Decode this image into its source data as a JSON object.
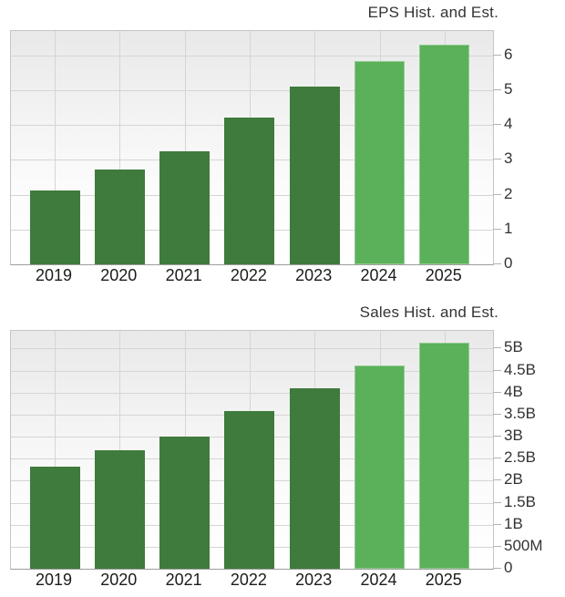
{
  "page_background": "#ffffff",
  "chart_data": [
    {
      "type": "bar",
      "title": "EPS Hist. and Est.",
      "categories": [
        "2019",
        "2020",
        "2021",
        "2022",
        "2023",
        "2024",
        "2025"
      ],
      "values": [
        2.12,
        2.73,
        3.25,
        4.21,
        5.11,
        5.84,
        6.31
      ],
      "is_estimate": [
        false,
        false,
        false,
        false,
        false,
        true,
        true
      ],
      "ylim": [
        0,
        6.7
      ],
      "yticks": [
        {
          "v": 0,
          "label": "0"
        },
        {
          "v": 1,
          "label": "1"
        },
        {
          "v": 2,
          "label": "2"
        },
        {
          "v": 3,
          "label": "3"
        },
        {
          "v": 4,
          "label": "4"
        },
        {
          "v": 5,
          "label": "5"
        },
        {
          "v": 6,
          "label": "6"
        }
      ],
      "grid": true,
      "axis_side": "right",
      "colors": {
        "historical": "#3e7b3c",
        "estimate": "#5bb05a"
      }
    },
    {
      "type": "bar",
      "title": "Sales Hist. and Est.",
      "categories": [
        "2019",
        "2020",
        "2021",
        "2022",
        "2023",
        "2024",
        "2025"
      ],
      "values": [
        2.31,
        2.68,
        2.99,
        3.57,
        4.1,
        4.61,
        5.13
      ],
      "value_unit": "billions",
      "is_estimate": [
        false,
        false,
        false,
        false,
        false,
        true,
        true
      ],
      "ylim": [
        0,
        5.4
      ],
      "yticks": [
        {
          "v": 0,
          "label": "0"
        },
        {
          "v": 0.5,
          "label": "500M"
        },
        {
          "v": 1,
          "label": "1B"
        },
        {
          "v": 1.5,
          "label": "1.5B"
        },
        {
          "v": 2,
          "label": "2B"
        },
        {
          "v": 2.5,
          "label": "2.5B"
        },
        {
          "v": 3,
          "label": "3B"
        },
        {
          "v": 3.5,
          "label": "3.5B"
        },
        {
          "v": 4,
          "label": "4B"
        },
        {
          "v": 4.5,
          "label": "4.5B"
        },
        {
          "v": 5,
          "label": "5B"
        }
      ],
      "grid": true,
      "axis_side": "right",
      "colors": {
        "historical": "#3e7b3c",
        "estimate": "#5bb05a"
      }
    }
  ]
}
